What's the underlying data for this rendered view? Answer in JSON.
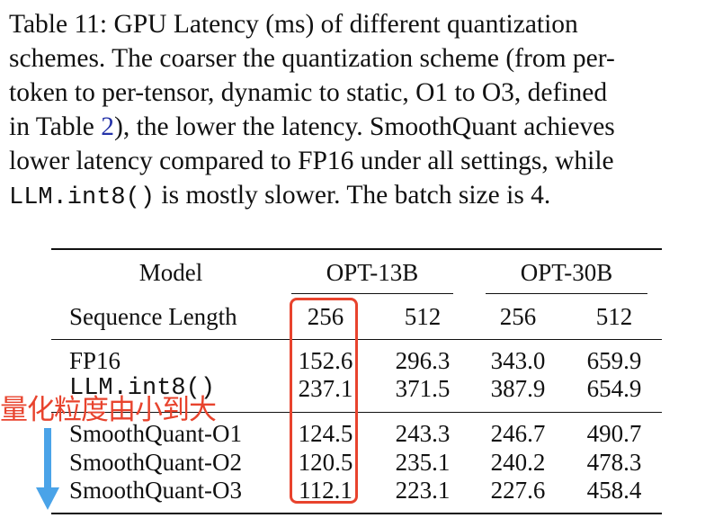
{
  "caption": {
    "line1": "Table 11:  GPU Latency (ms) of different quantization",
    "line2": "schemes. The coarser the quantization scheme (from per-",
    "line3": "token to per-tensor, dynamic to static, O1 to O3, defined",
    "line4_pre": "in Table ",
    "line4_ref": "2",
    "line4_post": "), the lower the latency. SmoothQuant achieves",
    "line5": "lower latency compared to FP16 under all settings, while",
    "line6_code": "LLM.int8()",
    "line6_post": " is mostly slower. The batch size is 4."
  },
  "table": {
    "model_header": "Model",
    "groups": [
      "OPT-13B",
      "OPT-30B"
    ],
    "seq_header": "Sequence Length",
    "seq_lengths": [
      "256",
      "512",
      "256",
      "512"
    ],
    "rows": [
      {
        "name": "FP16",
        "mono": false,
        "values": [
          "152.6",
          "296.3",
          "343.0",
          "659.9"
        ]
      },
      {
        "name": "LLM.int8()",
        "mono": true,
        "values": [
          "237.1",
          "371.5",
          "387.9",
          "654.9"
        ]
      },
      {
        "name": "SmoothQuant-O1",
        "mono": false,
        "values": [
          "124.5",
          "243.3",
          "246.7",
          "490.7"
        ]
      },
      {
        "name": "SmoothQuant-O2",
        "mono": false,
        "values": [
          "120.5",
          "235.1",
          "240.2",
          "478.3"
        ]
      },
      {
        "name": "SmoothQuant-O3",
        "mono": false,
        "values": [
          "112.1",
          "223.1",
          "227.6",
          "458.4"
        ]
      }
    ]
  },
  "annotation": {
    "text": "量化粒度由小到大",
    "color": "#e8432d",
    "arrow_color": "#4aa3e8",
    "highlight_color": "#e8432d"
  }
}
